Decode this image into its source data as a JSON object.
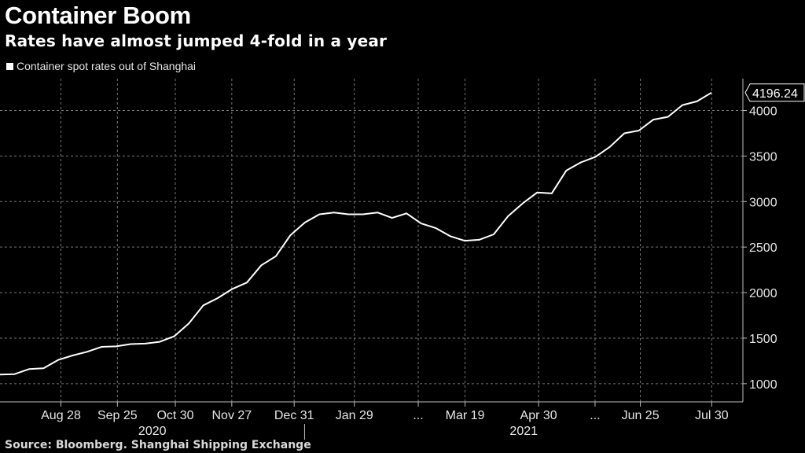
{
  "header": {
    "title": "Container Boom",
    "subtitle": "Rates have almost jumped 4-fold in a year"
  },
  "legend": {
    "label": "Container spot rates out of Shanghai"
  },
  "source": "Source: Bloomberg. Shanghai Shipping Exchange",
  "chart_data": {
    "type": "line",
    "title": "Container Boom",
    "subtitle": "Rates have almost jumped 4-fold in a year",
    "xlabel": "",
    "ylabel": "",
    "ylim": [
      800,
      4350
    ],
    "y_ticks": [
      1000,
      1500,
      2000,
      2500,
      3000,
      3500,
      4000
    ],
    "x_ticks": [
      "Aug 28",
      "Sep 25",
      "Oct 30",
      "Nov 27",
      "Dec 31",
      "Jan 29",
      "...",
      "Mar 19",
      "Apr 30",
      "...",
      "Jun 25",
      "Jul 30"
    ],
    "year_labels": [
      "2020",
      "2021"
    ],
    "last_value_label": "4196.24",
    "colors": {
      "background": "#000000",
      "line": "#ffffff",
      "grid": "#777777"
    },
    "grid": true,
    "legend_position": "top-left",
    "series": [
      {
        "name": "Container spot rates out of Shanghai",
        "values": [
          1100,
          1105,
          1160,
          1170,
          1260,
          1310,
          1350,
          1405,
          1410,
          1435,
          1440,
          1460,
          1520,
          1660,
          1860,
          1940,
          2040,
          2110,
          2300,
          2400,
          2630,
          2770,
          2860,
          2880,
          2860,
          2860,
          2880,
          2820,
          2870,
          2760,
          2710,
          2620,
          2570,
          2580,
          2640,
          2840,
          2980,
          3100,
          3090,
          3340,
          3430,
          3490,
          3600,
          3750,
          3780,
          3900,
          3930,
          4060,
          4100,
          4196.24
        ]
      }
    ]
  }
}
